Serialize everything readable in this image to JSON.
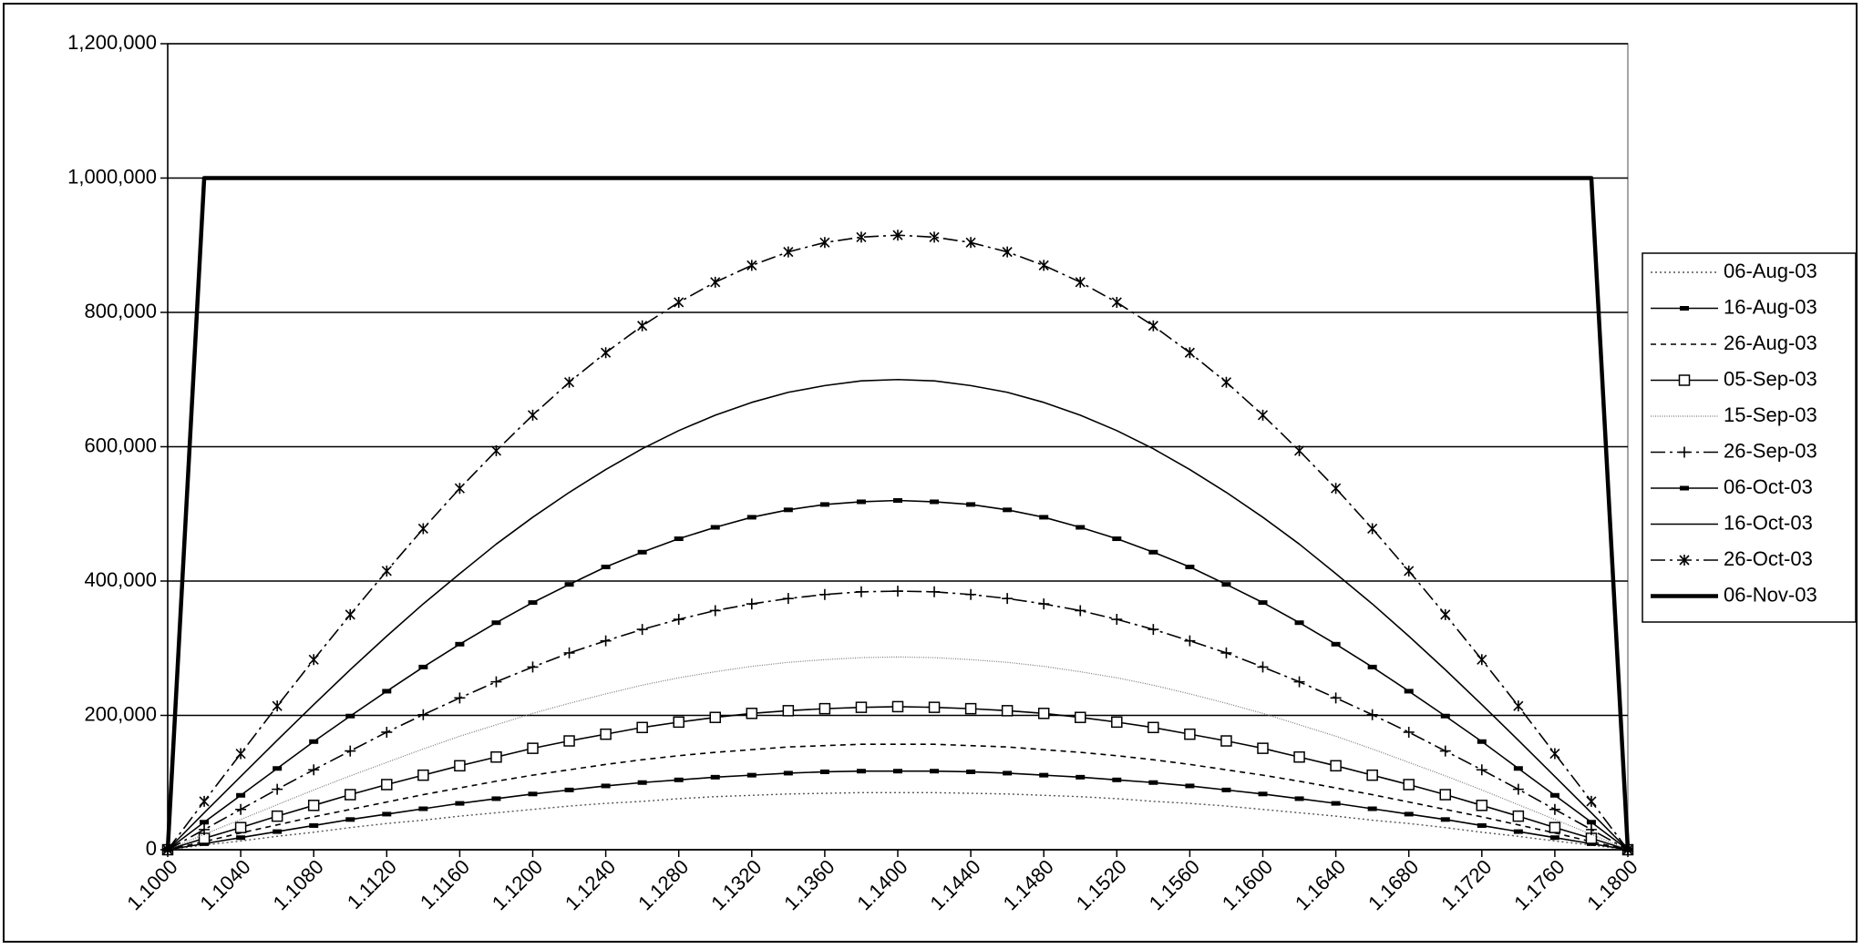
{
  "chart_data": {
    "type": "line",
    "x": [
      1.1,
      1.102,
      1.104,
      1.106,
      1.108,
      1.11,
      1.112,
      1.114,
      1.116,
      1.118,
      1.12,
      1.122,
      1.124,
      1.126,
      1.128,
      1.13,
      1.132,
      1.134,
      1.136,
      1.138,
      1.14,
      1.142,
      1.144,
      1.146,
      1.148,
      1.15,
      1.152,
      1.154,
      1.156,
      1.158,
      1.16,
      1.162,
      1.164,
      1.166,
      1.168,
      1.17,
      1.172,
      1.174,
      1.176,
      1.178,
      1.18
    ],
    "xlim": [
      1.1,
      1.18
    ],
    "xticks": [
      {
        "value": 1.1,
        "label": "1.1000"
      },
      {
        "value": 1.104,
        "label": "1.1040"
      },
      {
        "value": 1.108,
        "label": "1.1080"
      },
      {
        "value": 1.112,
        "label": "1.1120"
      },
      {
        "value": 1.116,
        "label": "1.1160"
      },
      {
        "value": 1.12,
        "label": "1.1200"
      },
      {
        "value": 1.124,
        "label": "1.1240"
      },
      {
        "value": 1.128,
        "label": "1.1280"
      },
      {
        "value": 1.132,
        "label": "1.1320"
      },
      {
        "value": 1.136,
        "label": "1.1360"
      },
      {
        "value": 1.14,
        "label": "1.1400"
      },
      {
        "value": 1.144,
        "label": "1.1440"
      },
      {
        "value": 1.148,
        "label": "1.1480"
      },
      {
        "value": 1.152,
        "label": "1.1520"
      },
      {
        "value": 1.156,
        "label": "1.1560"
      },
      {
        "value": 1.16,
        "label": "1.1600"
      },
      {
        "value": 1.164,
        "label": "1.1640"
      },
      {
        "value": 1.168,
        "label": "1.1680"
      },
      {
        "value": 1.172,
        "label": "1.1720"
      },
      {
        "value": 1.176,
        "label": "1.1760"
      },
      {
        "value": 1.18,
        "label": "1.1800"
      }
    ],
    "ylim": [
      0,
      1200000
    ],
    "yticks": [
      0,
      {
        "value": 200000,
        "label": "200,000"
      },
      {
        "value": 400000,
        "label": "400,000"
      },
      {
        "value": 600000,
        "label": "600,000"
      },
      {
        "value": 800000,
        "label": "800,000"
      },
      {
        "value": 1000000,
        "label": "1,000,000"
      },
      {
        "value": 1200000,
        "label": "1,200,000"
      }
    ],
    "grid": true,
    "legend": "right",
    "series": [
      {
        "name": "06-Aug-03",
        "color": "#555555",
        "style": "dotted",
        "marker": "none",
        "values": [
          0,
          7000,
          13000,
          20000,
          26000,
          33000,
          39000,
          44000,
          50000,
          55000,
          60000,
          65000,
          69000,
          72000,
          76000,
          79000,
          81000,
          83000,
          84000,
          85000,
          85000,
          85000,
          84000,
          83000,
          81000,
          79000,
          76000,
          72000,
          69000,
          65000,
          60000,
          55000,
          50000,
          44000,
          39000,
          33000,
          26000,
          20000,
          13000,
          7000,
          0
        ]
      },
      {
        "name": "16-Aug-03",
        "color": "#000000",
        "style": "solid",
        "marker": "dash",
        "values": [
          0,
          9000,
          18000,
          27000,
          36000,
          45000,
          53000,
          61000,
          69000,
          76000,
          83000,
          89000,
          95000,
          100000,
          104000,
          108000,
          111000,
          114000,
          116000,
          117000,
          117000,
          117000,
          116000,
          114000,
          111000,
          108000,
          104000,
          100000,
          95000,
          89000,
          83000,
          76000,
          69000,
          61000,
          53000,
          45000,
          36000,
          27000,
          18000,
          9000,
          0
        ]
      },
      {
        "name": "26-Aug-03",
        "color": "#000000",
        "style": "dashed",
        "marker": "none",
        "values": [
          0,
          12000,
          25000,
          37000,
          49000,
          60000,
          71000,
          82000,
          92000,
          102000,
          111000,
          119000,
          127000,
          134000,
          140000,
          145000,
          149000,
          153000,
          155000,
          157000,
          157000,
          157000,
          155000,
          153000,
          149000,
          145000,
          140000,
          134000,
          127000,
          119000,
          111000,
          102000,
          92000,
          82000,
          71000,
          60000,
          49000,
          37000,
          25000,
          12000,
          0
        ]
      },
      {
        "name": "05-Sep-03",
        "color": "#000000",
        "style": "solid",
        "marker": "square",
        "values": [
          0,
          17000,
          33000,
          50000,
          66000,
          82000,
          97000,
          111000,
          125000,
          138000,
          151000,
          162000,
          172000,
          182000,
          190000,
          197000,
          203000,
          207000,
          210000,
          212000,
          213000,
          212000,
          210000,
          207000,
          203000,
          197000,
          190000,
          182000,
          172000,
          162000,
          151000,
          138000,
          125000,
          111000,
          97000,
          82000,
          66000,
          50000,
          33000,
          17000,
          0
        ]
      },
      {
        "name": "15-Sep-03",
        "color": "#777777",
        "style": "fine",
        "marker": "none",
        "values": [
          0,
          23000,
          45000,
          67000,
          89000,
          110000,
          130000,
          150000,
          169000,
          186000,
          203000,
          218000,
          232000,
          245000,
          256000,
          265000,
          273000,
          279000,
          283000,
          286000,
          287000,
          286000,
          283000,
          279000,
          273000,
          265000,
          256000,
          245000,
          232000,
          218000,
          203000,
          186000,
          169000,
          150000,
          130000,
          110000,
          89000,
          67000,
          45000,
          23000,
          0
        ]
      },
      {
        "name": "26-Sep-03",
        "color": "#000000",
        "style": "dash-dot",
        "marker": "plus",
        "values": [
          0,
          30000,
          60000,
          90000,
          119000,
          147000,
          175000,
          201000,
          226000,
          250000,
          272000,
          293000,
          311000,
          328000,
          343000,
          356000,
          366000,
          374000,
          380000,
          384000,
          385000,
          384000,
          380000,
          374000,
          366000,
          356000,
          343000,
          328000,
          311000,
          293000,
          272000,
          250000,
          226000,
          201000,
          175000,
          147000,
          119000,
          90000,
          60000,
          30000,
          0
        ]
      },
      {
        "name": "06-Oct-03",
        "color": "#000000",
        "style": "solid",
        "marker": "dash",
        "values": [
          0,
          41000,
          81000,
          121000,
          161000,
          199000,
          236000,
          272000,
          306000,
          338000,
          368000,
          395000,
          421000,
          443000,
          463000,
          480000,
          495000,
          506000,
          514000,
          518000,
          520000,
          518000,
          514000,
          506000,
          495000,
          480000,
          463000,
          443000,
          421000,
          395000,
          368000,
          338000,
          306000,
          272000,
          236000,
          199000,
          161000,
          121000,
          81000,
          41000,
          0
        ]
      },
      {
        "name": "16-Oct-03",
        "color": "#000000",
        "style": "solid",
        "marker": "none",
        "values": [
          0,
          55000,
          109000,
          163000,
          216000,
          268000,
          318000,
          366000,
          411000,
          455000,
          495000,
          532000,
          566000,
          597000,
          624000,
          647000,
          666000,
          681000,
          691000,
          698000,
          700000,
          698000,
          691000,
          681000,
          666000,
          647000,
          624000,
          597000,
          566000,
          532000,
          495000,
          455000,
          411000,
          366000,
          318000,
          268000,
          216000,
          163000,
          109000,
          55000,
          0
        ]
      },
      {
        "name": "26-Oct-03",
        "color": "#000000",
        "style": "dash-dot",
        "marker": "asterisk",
        "values": [
          0,
          72000,
          143000,
          214000,
          283000,
          350000,
          415000,
          478000,
          538000,
          594000,
          647000,
          696000,
          740000,
          780000,
          815000,
          845000,
          870000,
          890000,
          904000,
          912000,
          915000,
          912000,
          904000,
          890000,
          870000,
          845000,
          815000,
          780000,
          740000,
          696000,
          647000,
          594000,
          538000,
          478000,
          415000,
          350000,
          283000,
          214000,
          143000,
          72000,
          0
        ]
      },
      {
        "name": "06-Nov-03",
        "color": "#000000",
        "style": "thick",
        "marker": "none",
        "values": [
          0,
          1000000,
          1000000,
          1000000,
          1000000,
          1000000,
          1000000,
          1000000,
          1000000,
          1000000,
          1000000,
          1000000,
          1000000,
          1000000,
          1000000,
          1000000,
          1000000,
          1000000,
          1000000,
          1000000,
          1000000,
          1000000,
          1000000,
          1000000,
          1000000,
          1000000,
          1000000,
          1000000,
          1000000,
          1000000,
          1000000,
          1000000,
          1000000,
          1000000,
          1000000,
          1000000,
          1000000,
          1000000,
          1000000,
          1000000,
          0
        ]
      }
    ]
  }
}
